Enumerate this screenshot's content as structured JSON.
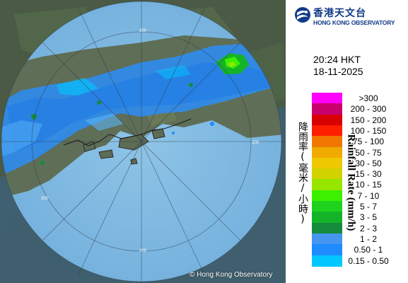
{
  "header": {
    "org_name_cn": "香港天文台",
    "org_name_en": "HONG KONG OBSERVATORY",
    "time": "20:24 HKT",
    "date": "18-11-2025"
  },
  "map": {
    "ring_labels": [
      "200",
      "200",
      "200",
      "200"
    ],
    "copyright": "© Hong Kong Observatory"
  },
  "legend": {
    "title_cn": "降雨率(毫米/小時)",
    "title_en": "Rainfall Rate (mm/h)",
    "items": [
      {
        "label": ">300",
        "color": "#ff00ff"
      },
      {
        "label": "200 - 300",
        "color": "#c8006e"
      },
      {
        "label": "150 - 200",
        "color": "#d80000"
      },
      {
        "label": "100 - 150",
        "color": "#ff1e00"
      },
      {
        "label": "75 - 100",
        "color": "#f07800"
      },
      {
        "label": "50 - 75",
        "color": "#f0aa00"
      },
      {
        "label": "30 - 50",
        "color": "#eec800"
      },
      {
        "label": "15 - 30",
        "color": "#d2d200"
      },
      {
        "label": "10 - 15",
        "color": "#96e600"
      },
      {
        "label": "7 - 10",
        "color": "#3cf000"
      },
      {
        "label": "5 - 7",
        "color": "#1ed21e"
      },
      {
        "label": "3 - 5",
        "color": "#14b428"
      },
      {
        "label": "2 - 3",
        "color": "#148c3c"
      },
      {
        "label": "1 - 2",
        "color": "#4696f0"
      },
      {
        "label": "0.50 - 1",
        "color": "#1e8cff"
      },
      {
        "label": "0.15 - 0.50",
        "color": "#00c8ff"
      }
    ]
  }
}
